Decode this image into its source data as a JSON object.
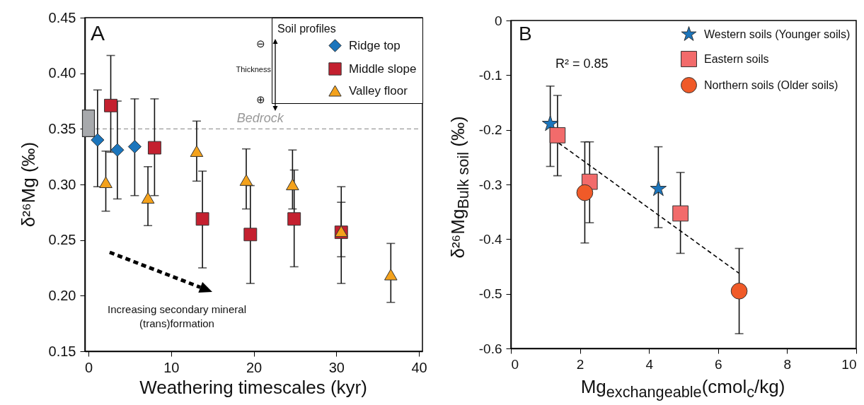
{
  "chart_data": [
    {
      "type": "scatter",
      "xlabel": "Weathering timescales (kyr)",
      "ylabel": "δ²⁶Mg (‰)",
      "legend_title": "Soil profiles",
      "legend": "top right",
      "grid": false,
      "xlim": [
        0,
        40
      ],
      "ylim": [
        0.15,
        0.45
      ],
      "xticks": [
        0,
        10,
        20,
        30,
        40
      ],
      "yticks": [
        0.15,
        {
          "value": 0.2,
          "label": "0.20"
        },
        0.25,
        {
          "value": 0.3,
          "label": "0.30"
        },
        0.35,
        {
          "value": 0.4,
          "label": "0.40"
        },
        0.45
      ],
      "ref_lines": [
        {
          "axis": "y",
          "value": 0.35,
          "label": "Bedrock",
          "color": "#9a9a9a",
          "line_style": "dashed"
        }
      ],
      "annotations": [
        "A",
        "Increasing secondary mineral (trans)formation",
        "Thickness",
        "⊖",
        "⊕"
      ],
      "series": [
        {
          "name": "Ridge top",
          "color": "#1b75bc",
          "marker": "diamond",
          "x": [
            1.1,
            3.5,
            5.6
          ],
          "values": [
            0.34,
            0.331,
            0.334
          ],
          "errors": [
            [
              0.298,
              0.385
            ],
            [
              0.287,
              0.375
            ],
            [
              0.29,
              0.377
            ]
          ]
        },
        {
          "name": "Middle slope",
          "color": "#c4202f",
          "marker": "square",
          "x": [
            2.7,
            8.0,
            13.8,
            19.6,
            24.9,
            30.6
          ],
          "values": [
            0.371,
            0.333,
            0.269,
            0.255,
            0.269,
            0.257
          ],
          "errors": [
            [
              0.329,
              0.416
            ],
            [
              0.29,
              0.377
            ],
            [
              0.225,
              0.312
            ],
            [
              0.211,
              0.299
            ],
            [
              0.226,
              0.313
            ],
            [
              0.211,
              0.298
            ]
          ]
        },
        {
          "name": "Valley floor",
          "color": "#f4a21c",
          "marker": "triangle",
          "x": [
            2.1,
            7.2,
            13.1,
            19.1,
            24.7,
            30.6,
            36.6
          ],
          "values": [
            0.302,
            0.288,
            0.33,
            0.304,
            0.3,
            0.258,
            0.219
          ],
          "errors": [
            [
              0.276,
              0.33
            ],
            [
              0.263,
              0.316
            ],
            [
              0.303,
              0.357
            ],
            [
              0.278,
              0.332
            ],
            [
              0.278,
              0.331
            ],
            [
              0.235,
              0.284
            ],
            [
              0.194,
              0.247
            ]
          ]
        },
        {
          "type": "bar",
          "color": "#a7a9ac",
          "x": [
            0
          ],
          "base": [
            0.343
          ],
          "values": [
            0.024
          ]
        }
      ]
    },
    {
      "type": "scatter",
      "xlabel": "Mg$_{exchangeable}$(cmol$_{c}$/kg)",
      "ylabel": "δ²⁶Mg$_{Bulk soil}$ (‰)",
      "legend": "top right",
      "grid": false,
      "xlim": [
        0,
        10
      ],
      "ylim": [
        -0.6,
        0
      ],
      "xticks": [
        0,
        2,
        4,
        6,
        8,
        10
      ],
      "yticks": [
        -0.6,
        -0.5,
        -0.4,
        -0.3,
        -0.2,
        -0.1,
        0
      ],
      "annotations": [
        "B",
        "R² = 0.85"
      ],
      "series": [
        {
          "name": "Western soils (Younger soils)",
          "color": "#1b75bc",
          "marker": "star",
          "x": [
            1.14,
            4.27
          ],
          "values": [
            -0.189,
            -0.308
          ],
          "errors": [
            [
              -0.267,
              -0.12
            ],
            [
              -0.379,
              -0.231
            ]
          ]
        },
        {
          "name": "Eastern soils",
          "color": "#f26b6b",
          "marker": "square",
          "x": [
            1.35,
            2.28,
            4.91
          ],
          "values": [
            -0.21,
            -0.295,
            -0.353
          ],
          "errors": [
            [
              -0.284,
              -0.137
            ],
            [
              -0.37,
              -0.222
            ],
            [
              -0.426,
              -0.278
            ]
          ]
        },
        {
          "name": "Northern soils (Older soils)",
          "color": "#f05a28",
          "marker": "circle",
          "x": [
            2.14,
            6.61
          ],
          "values": [
            -0.315,
            -0.495
          ],
          "errors": [
            [
              -0.407,
              -0.222
            ],
            [
              -0.573,
              -0.417
            ]
          ]
        },
        {
          "type": "line",
          "color": "#000000",
          "line_style": "dashed",
          "x": [
            1.38,
            6.6
          ],
          "values": [
            -0.224,
            -0.462
          ]
        }
      ]
    }
  ]
}
